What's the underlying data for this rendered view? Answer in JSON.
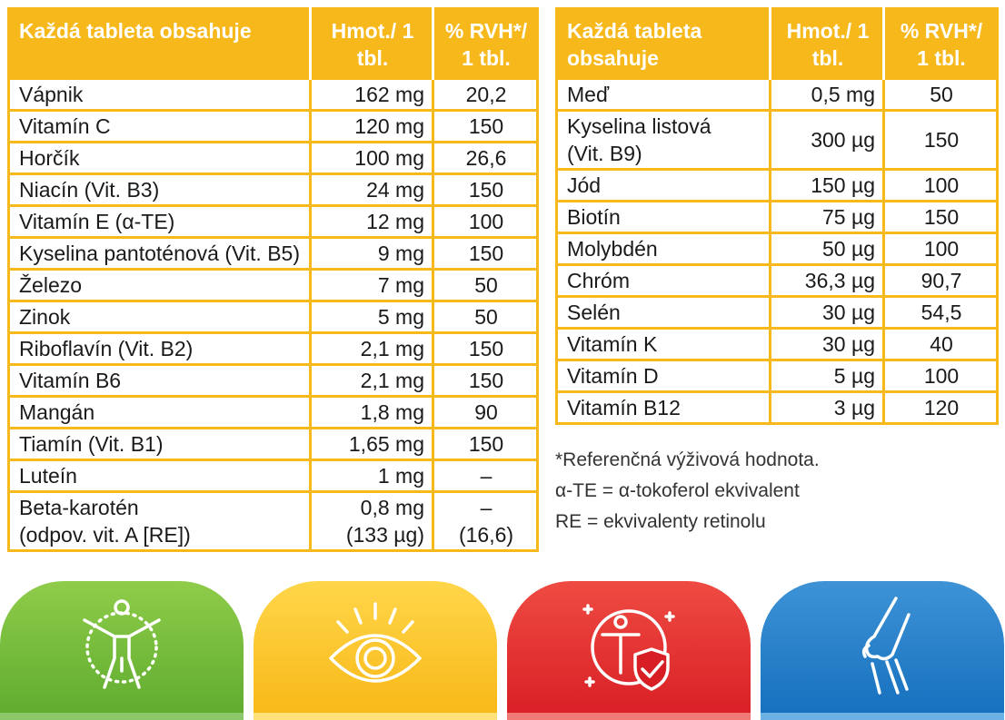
{
  "left_table": {
    "headers": [
      "Každá tableta obsahuje",
      "Hmot./ 1 tbl.",
      "% RVH*/ 1 tbl."
    ],
    "rows": [
      {
        "name": "Vápnik",
        "amount": "162 mg",
        "rvh": "20,2"
      },
      {
        "name": "Vitamín C",
        "amount": "120 mg",
        "rvh": "150"
      },
      {
        "name": "Horčík",
        "amount": "100 mg",
        "rvh": "26,6"
      },
      {
        "name": "Niacín (Vit. B3)",
        "amount": "24 mg",
        "rvh": "150"
      },
      {
        "name": "Vitamín E (α-TE)",
        "amount": "12 mg",
        "rvh": "100"
      },
      {
        "name": "Kyselina pantoténová (Vit. B5)",
        "amount": "9 mg",
        "rvh": "150"
      },
      {
        "name": "Železo",
        "amount": "7 mg",
        "rvh": "50"
      },
      {
        "name": "Zinok",
        "amount": "5 mg",
        "rvh": "50"
      },
      {
        "name": "Riboflavín (Vit. B2)",
        "amount": "2,1 mg",
        "rvh": "150"
      },
      {
        "name": "Vitamín B6",
        "amount": "2,1 mg",
        "rvh": "150"
      },
      {
        "name": "Mangán",
        "amount": "1,8 mg",
        "rvh": "90"
      },
      {
        "name": "Tiamín (Vit. B1)",
        "amount": "1,65 mg",
        "rvh": "150"
      },
      {
        "name": "Luteín",
        "amount": "1 mg",
        "rvh": "–"
      }
    ],
    "beta": {
      "name_1": "Beta-karotén",
      "name_2": "(odpov. vit. A [RE])",
      "amount_1": "0,8 mg",
      "amount_2": "(133 µg)",
      "rvh_1": "–",
      "rvh_2": "(16,6)"
    }
  },
  "right_table": {
    "headers": [
      "Každá tableta obsahuje",
      "Hmot./ 1 tbl.",
      "% RVH*/ 1 tbl."
    ],
    "row_first": {
      "name": "Meď",
      "amount": "0,5 mg",
      "rvh": "50"
    },
    "folic": {
      "name_1": "Kyselina listová",
      "name_2": "(Vit. B9)",
      "amount": "300 µg",
      "rvh": "150"
    },
    "rows": [
      {
        "name": "Jód",
        "amount": "150 µg",
        "rvh": "100"
      },
      {
        "name": "Biotín",
        "amount": "75 µg",
        "rvh": "150"
      },
      {
        "name": "Molybdén",
        "amount": "50 µg",
        "rvh": "100"
      },
      {
        "name": "Chróm",
        "amount": "36,3 µg",
        "rvh": "90,7"
      },
      {
        "name": "Selén",
        "amount": "30 µg",
        "rvh": "54,5"
      },
      {
        "name": "Vitamín K",
        "amount": "30 µg",
        "rvh": "40"
      },
      {
        "name": "Vitamín D",
        "amount": "5 µg",
        "rvh": "100"
      },
      {
        "name": "Vitamín B12",
        "amount": "3 µg",
        "rvh": "120"
      }
    ]
  },
  "notes": [
    "*Referenčná výživová hodnota.",
    "α-TE = α-tokoferol ekvivalent",
    "RE = ekvivalenty retinolu"
  ],
  "colors": {
    "accent": "#f7b81c",
    "green": "#5eab2e",
    "yellow": "#f8b716",
    "red": "#d81e25",
    "blue": "#156fbd"
  },
  "icons": [
    "body-circle-icon",
    "eye-icon",
    "immunity-shield-icon",
    "knee-joint-icon"
  ]
}
